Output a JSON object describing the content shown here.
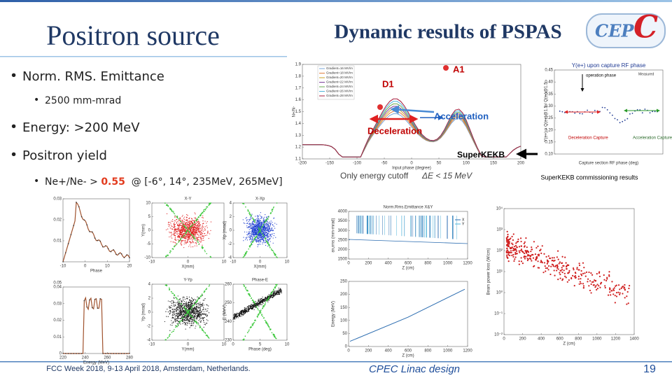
{
  "header": {
    "left_title": "Positron source",
    "right_title": "Dynamic results of PSPAS",
    "logo_main": "CEP",
    "logo_accent": "C"
  },
  "bullets": [
    {
      "text": "Norm. RMS. Emittance"
    },
    {
      "text": "2500 mm-mrad"
    },
    {
      "text": "Energy:  >200 MeV"
    },
    {
      "text": "Positron yield"
    },
    {
      "text_before": "Ne+/Ne- > ",
      "highlight": "0.55",
      "text_after": "  @ [-6°, 14°, 235MeV, 265MeV]"
    }
  ],
  "annotations": {
    "a1": "A1",
    "d1": "D1",
    "acceleration": "Acceleration",
    "deceleration": "Deceleration",
    "superkekb": "SuperKEKB",
    "cutoff": "Only energy cutoff",
    "delta": "ΔE < 15 MeV",
    "kekb_caption": "SuperKEKB commissioning results"
  },
  "plots": {
    "capture": {
      "xlabel": "Input phase (degree)",
      "ylabel": "N+/N-",
      "legend": [
        "Gradient=16 MV/m",
        "Gradient=18 MV/m",
        "Gradient=20 MV/m",
        "Gradient=22 MV/m",
        "Gradient=24 MV/m",
        "Gradient=26 MV/m",
        "Gradient=28 MV/m"
      ],
      "xticks": [
        "-200",
        "-150",
        "-100",
        "-50",
        "0",
        "50",
        "100",
        "150",
        "200"
      ],
      "yticks": [
        "1.9",
        "1.8",
        "1.7",
        "1.6",
        "1.5",
        "1.4",
        "1.3",
        "1.2",
        "1.1"
      ]
    },
    "kekb": {
      "title": "Y(e+) upon capture RF phase",
      "xlabel": "Capture section RF phase (deg)",
      "ylabel": "Y(e+) = Q(e+)@1.5 / Q(e-)@1.5",
      "legend": [
        "Measured"
      ],
      "op": "operation phase",
      "dec": "Deceleration Capture",
      "acc": "Acceleration Capture",
      "xticks": [],
      "yticks": [
        "0.45",
        "0.40",
        "0.35",
        "0.30",
        "0.25",
        "0.20",
        "0.15",
        "0.10"
      ]
    },
    "phase": {
      "xlabel": "Phase",
      "xticks": [
        "-10",
        "0",
        "10",
        "20"
      ],
      "yticks": [
        "0.03",
        "0.02",
        "0.01",
        ""
      ]
    },
    "xy": {
      "title": "X-Y",
      "xlabel": "X(mm)",
      "ylabel": "Y(mm)",
      "xticks": [
        "-10",
        "0",
        "10"
      ],
      "yticks": [
        "10",
        "5",
        "0",
        "-5",
        "-10"
      ]
    },
    "xxp": {
      "title": "X-Xp",
      "xlabel": "X(mm)",
      "ylabel": "Xp (mrad)",
      "xticks": [
        "-10",
        "0",
        "10"
      ],
      "yticks": [
        "4",
        "2",
        "0",
        "-2",
        "-4"
      ]
    },
    "energy_hist": {
      "title": "0.05",
      "xlabel": "Energy (MeV)",
      "xticks": [
        "220",
        "240",
        "260",
        "280"
      ],
      "yticks": [
        "0.04",
        "0.03",
        "0.02",
        "0.01",
        "0"
      ]
    },
    "yyp": {
      "title": "Y-Yp",
      "xlabel": "Y(mm)",
      "ylabel": "Yp (mrad)",
      "xticks": [
        "-10",
        "0",
        "10"
      ],
      "yticks": [
        "4",
        "2",
        "0",
        "-2",
        "-4"
      ]
    },
    "phase_e": {
      "title": "Phase-E",
      "xlabel": "Phase (deg)",
      "ylabel": "E (MeV)",
      "xticks": [
        "0",
        "5",
        "10"
      ],
      "yticks": [
        "260",
        "250",
        "240",
        "230"
      ]
    },
    "emit": {
      "title": "Norm.Rms.Emittance X&Y",
      "xlabel": "Z (cm)",
      "ylabel": "εn,rms (mm-mrad)",
      "legend": [
        "X",
        "Y"
      ],
      "xticks": [
        "0",
        "200",
        "400",
        "600",
        "800",
        "1000",
        "1200"
      ],
      "yticks": [
        "4000",
        "3500",
        "3000",
        "2500",
        "2000",
        "1500"
      ]
    },
    "energy": {
      "xlabel": "Z (cm)",
      "ylabel": "Energy (MeV)",
      "xticks": [
        "0",
        "200",
        "400",
        "600",
        "800",
        "1000",
        "1200"
      ],
      "yticks": [
        "250",
        "200",
        "150",
        "100",
        "50",
        "0"
      ]
    },
    "loss": {
      "xlabel": "Z (cm)",
      "ylabel": "Beam power loss (W/cm)",
      "xticks": [
        "0",
        "200",
        "400",
        "600",
        "800",
        "1000",
        "1200",
        "1400"
      ],
      "yticks": [
        "10⁴",
        "10³",
        "10²",
        "10¹",
        "10⁰",
        "10⁻¹",
        "10⁻²"
      ]
    }
  },
  "footer": {
    "event": "FCC Week 2018, 9-13 April 2018, Amsterdam, Netherlands.",
    "topic": "CPEC Linac design",
    "page": "19"
  }
}
